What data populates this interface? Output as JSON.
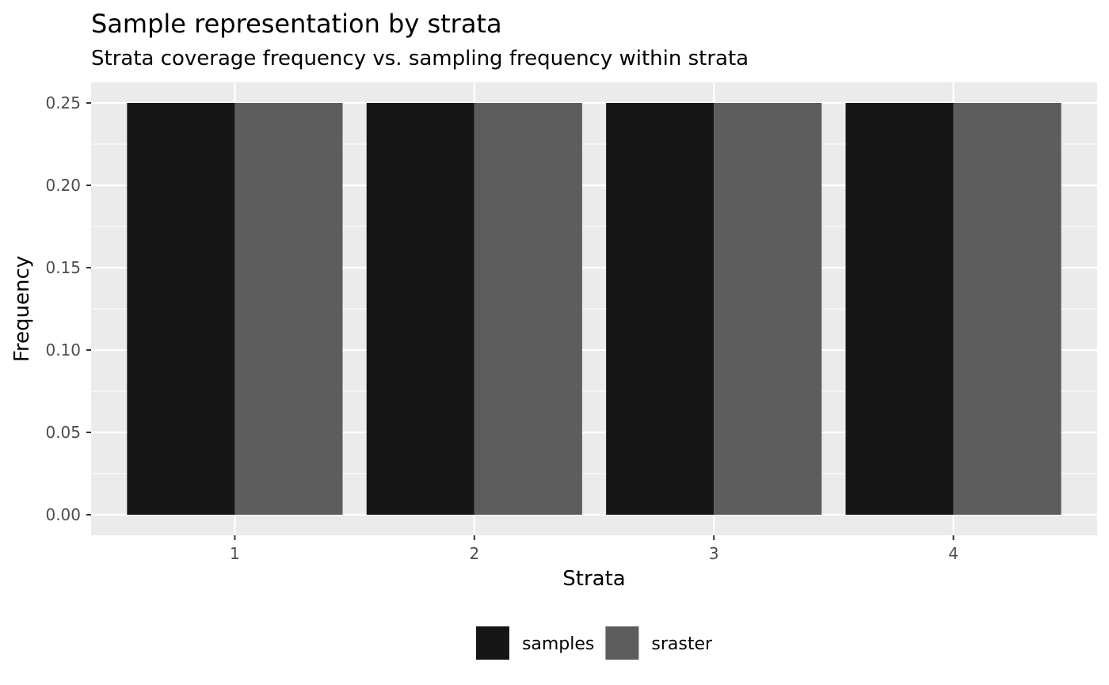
{
  "chart_data": {
    "type": "bar",
    "title": "Sample representation by strata",
    "subtitle": "Strata coverage frequency vs. sampling frequency within strata",
    "xlabel": "Strata",
    "ylabel": "Frequency",
    "categories": [
      "1",
      "2",
      "3",
      "4"
    ],
    "series": [
      {
        "name": "samples",
        "values": [
          0.25,
          0.25,
          0.25,
          0.25
        ],
        "color": "#161616"
      },
      {
        "name": "sraster",
        "values": [
          0.25,
          0.25,
          0.25,
          0.25
        ],
        "color": "#5d5d5d"
      }
    ],
    "ylim": [
      -0.0125,
      0.2625
    ],
    "yticks": [
      0.0,
      0.05,
      0.1,
      0.15,
      0.2,
      0.25
    ],
    "ytick_labels": [
      "0.00",
      "0.05",
      "0.10",
      "0.15",
      "0.20",
      "0.25"
    ],
    "grid": true,
    "legend_position": "bottom",
    "panel_color": "#ebebeb"
  }
}
